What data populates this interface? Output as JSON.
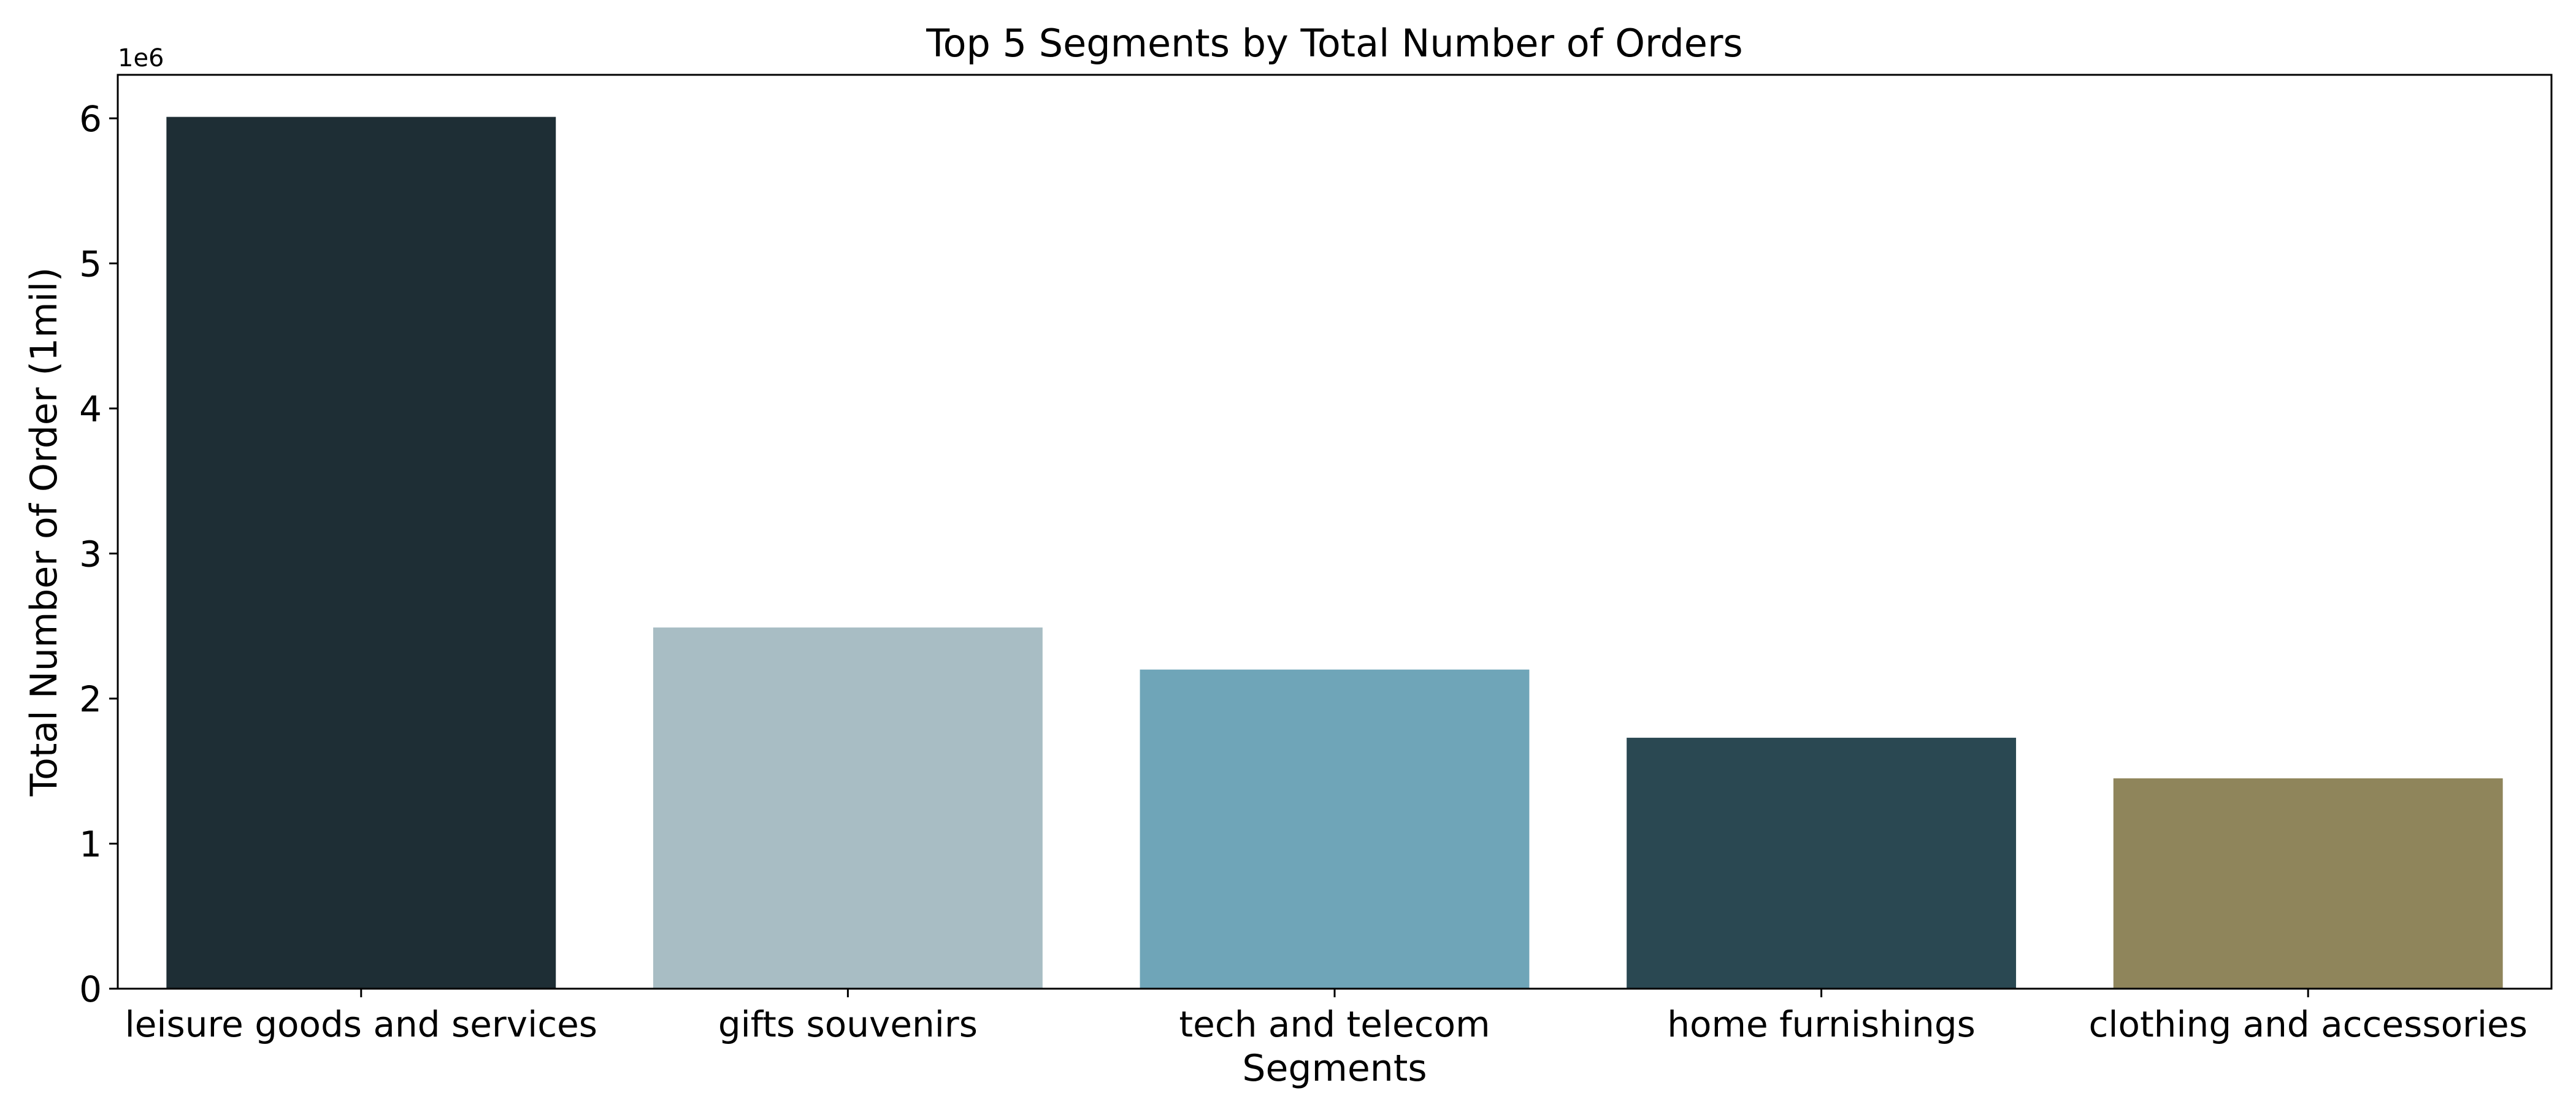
{
  "chart_data": {
    "type": "bar",
    "title": "Top 5 Segments by Total Number of Orders",
    "xlabel": "Segments",
    "ylabel": "Total Number of Order (1mil)",
    "y_offset_label": "1e6",
    "categories": [
      "leisure goods and services",
      "gifts souvenirs",
      "tech and telecom",
      "home furnishings",
      "clothing and accessories"
    ],
    "values": [
      6010000,
      2490000,
      2200000,
      1730000,
      1450000
    ],
    "colors": [
      "#1e2e35",
      "#a8bdc4",
      "#6fa5b8",
      "#2a4852",
      "#8f855b"
    ],
    "ylim": [
      0,
      6300000
    ],
    "yticks": [
      0,
      1000000,
      2000000,
      3000000,
      4000000,
      5000000,
      6000000
    ],
    "ytick_labels": [
      "0",
      "1",
      "2",
      "3",
      "4",
      "5",
      "6"
    ],
    "grid": false,
    "legend": "none"
  }
}
